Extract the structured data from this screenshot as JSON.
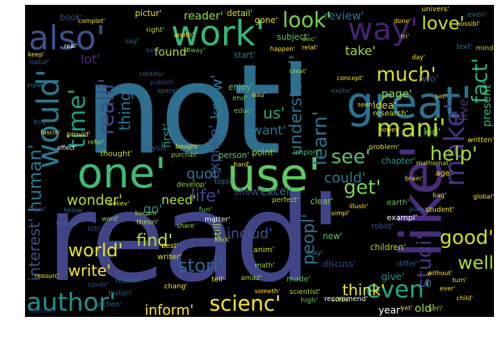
{
  "words": [
    {
      "text": "not'",
      "color": "#2e6e8e",
      "vertical": false
    },
    {
      "text": "read'",
      "color": "#414487",
      "vertical": false
    },
    {
      "text": "like'",
      "color": "#472d7b",
      "vertical": true
    },
    {
      "text": "use'",
      "color": "#5ec962",
      "vertical": false
    },
    {
      "text": "one'",
      "color": "#3dbc74",
      "vertical": false
    },
    {
      "text": "great'",
      "color": "#2c728e",
      "vertical": false
    },
    {
      "text": "work'",
      "color": "#35b779",
      "vertical": false
    },
    {
      "text": "also'",
      "color": "#3b528b",
      "vertical": false
    },
    {
      "text": "would'",
      "color": "#2a788e",
      "vertical": true
    },
    {
      "text": "make'",
      "color": "#46327e",
      "vertical": true
    },
    {
      "text": "way'",
      "color": "#482173",
      "vertical": false
    },
    {
      "text": "time'",
      "color": "#1f9e89",
      "vertical": true
    },
    {
      "text": "author'",
      "color": "#21918c",
      "vertical": false
    },
    {
      "text": "scienc'",
      "color": "#fde725",
      "vertical": false
    },
    {
      "text": "mani'",
      "color": "#b5de2b",
      "vertical": false
    },
    {
      "text": "even'",
      "color": "#22a884",
      "vertical": false
    },
    {
      "text": "fact'",
      "color": "#2db27d",
      "vertical": true
    },
    {
      "text": "help'",
      "color": "#a0da39",
      "vertical": false
    },
    {
      "text": "love'",
      "color": "#c8e020",
      "vertical": false
    },
    {
      "text": "look'",
      "color": "#7ad151",
      "vertical": false
    },
    {
      "text": "realli'",
      "color": "#3e4989",
      "vertical": true
    },
    {
      "text": "thing'",
      "color": "#2a768e",
      "vertical": true
    },
    {
      "text": "see'",
      "color": "#54c568",
      "vertical": false
    },
    {
      "text": "understand'",
      "color": "#2c728e",
      "vertical": true
    },
    {
      "text": "learn'",
      "color": "#2e6f8e",
      "vertical": true
    },
    {
      "text": "much'",
      "color": "#d8e219",
      "vertical": false
    },
    {
      "text": "world'",
      "color": "#e5e419",
      "vertical": false
    },
    {
      "text": "write'",
      "color": "#fde725",
      "vertical": false
    },
    {
      "text": "human'",
      "color": "#2a778e",
      "vertical": true
    },
    {
      "text": "interest'",
      "color": "#3b528b",
      "vertical": true
    },
    {
      "text": "get'",
      "color": "#7ad151",
      "vertical": false
    },
    {
      "text": "life'",
      "color": "#3e4a89",
      "vertical": false
    },
    {
      "text": "good'",
      "color": "#d2e21b",
      "vertical": false
    },
    {
      "text": "well'",
      "color": "#addc30",
      "vertical": false
    },
    {
      "text": "peopl'",
      "color": "#2c728e",
      "vertical": true
    },
    {
      "text": "stori'",
      "color": "#31688e",
      "vertical": false
    },
    {
      "text": "find'",
      "color": "#bddf26",
      "vertical": false
    },
    {
      "text": "inform'",
      "color": "#fde725",
      "vertical": false
    },
    {
      "text": "think'",
      "color": "#efe51c",
      "vertical": false
    },
    {
      "text": "studi'",
      "color": "#443983",
      "vertical": true
    },
    {
      "text": "know'",
      "color": "#2a788e",
      "vertical": true
    },
    {
      "text": "explain'",
      "color": "#3b528b",
      "vertical": true
    },
    {
      "text": "quot'",
      "color": "#2a788e",
      "vertical": false
    },
    {
      "text": "could'",
      "color": "#2a788e",
      "vertical": false
    },
    {
      "text": "includ'",
      "color": "#3b528b",
      "vertical": false
    },
    {
      "text": "wonder'",
      "color": "#b5de2b",
      "vertical": false
    },
    {
      "text": "need'",
      "color": "#b5de2b",
      "vertical": false
    },
    {
      "text": "us'",
      "color": "#25ab82",
      "vertical": false
    },
    {
      "text": "want'",
      "color": "#2a788e",
      "vertical": false
    },
    {
      "text": "go'",
      "color": "#21918c",
      "vertical": false
    },
    {
      "text": "give'",
      "color": "#21918c",
      "vertical": false
    },
    {
      "text": "year'",
      "color": "#ffffff",
      "vertical": false
    },
    {
      "text": "old'",
      "color": "#a0da39",
      "vertical": false
    },
    {
      "text": "take'",
      "color": "#a0da39",
      "vertical": false
    },
    {
      "text": "page'",
      "color": "#8fd744",
      "vertical": false
    },
    {
      "text": "idea'",
      "color": "#cfe11c",
      "vertical": false
    },
    {
      "text": "found'",
      "color": "#b5de2b",
      "vertical": false
    },
    {
      "text": "reader'",
      "color": "#95d840",
      "vertical": false
    },
    {
      "text": "review'",
      "color": "#2a788e",
      "vertical": false
    },
    {
      "text": "lot'",
      "color": "#46307e",
      "vertical": false
    },
    {
      "text": "first'",
      "color": "#1f9e89",
      "vertical": true
    },
    {
      "text": "kid'",
      "color": "#7ad151",
      "vertical": false
    },
    {
      "text": "two'",
      "color": "#3b528b",
      "vertical": false
    },
    {
      "text": "live'",
      "color": "#46327e",
      "vertical": true
    },
    {
      "text": "present'",
      "color": "#35b779",
      "vertical": true
    },
    {
      "text": "excel'",
      "color": "#2a788e",
      "vertical": false
    },
    {
      "text": "show'",
      "color": "#3e4989",
      "vertical": false
    },
    {
      "text": "pictur'",
      "color": "#e5e419",
      "vertical": false
    },
    {
      "text": "book'",
      "color": "#3e4989",
      "vertical": false
    },
    {
      "text": "detail'",
      "color": "#d2e21b",
      "vertical": false
    },
    {
      "text": "gone'",
      "color": "#e5e419",
      "vertical": false
    },
    {
      "text": "subject'",
      "color": "#5ec962",
      "vertical": false
    },
    {
      "text": "start'",
      "color": "#2a788e",
      "vertical": false
    },
    {
      "text": "enjoy'",
      "color": "#5ec962",
      "vertical": false
    },
    {
      "text": "end'",
      "color": "#6ccd5a",
      "vertical": false
    },
    {
      "text": "educ'",
      "color": "#6ccd5a",
      "vertical": false
    },
    {
      "text": "person'",
      "color": "#5ec962",
      "vertical": false
    },
    {
      "text": "point'",
      "color": "#addc30",
      "vertical": false
    },
    {
      "text": "topic'",
      "color": "#2e6f8e",
      "vertical": false
    },
    {
      "text": "import'",
      "color": "#3dbc74",
      "vertical": false
    },
    {
      "text": "research'",
      "color": "#cfe11c",
      "vertical": false
    },
    {
      "text": "problem'",
      "color": "#d8e219",
      "vertical": false
    },
    {
      "text": "chapter'",
      "color": "#1f9e89",
      "vertical": false
    },
    {
      "text": "age'",
      "color": "#fde725",
      "vertical": false
    },
    {
      "text": "thought'",
      "color": "#b5de2b",
      "vertical": false
    },
    {
      "text": "physic'",
      "color": "#3b528b",
      "vertical": false
    },
    {
      "text": "develop'",
      "color": "#a0da39",
      "vertical": false
    },
    {
      "text": "fun'",
      "color": "#5ec962",
      "vertical": false
    },
    {
      "text": "matter'",
      "color": "#ffffff",
      "vertical": false
    },
    {
      "text": "perfect'",
      "color": "#addc30",
      "vertical": false
    },
    {
      "text": "clear'",
      "color": "#7ad151",
      "vertical": false
    },
    {
      "text": "exampl'",
      "color": "#ffffff",
      "vertical": false
    },
    {
      "text": "robot'",
      "color": "#3b528b",
      "vertical": false
    },
    {
      "text": "children'",
      "color": "#addc30",
      "vertical": false
    },
    {
      "text": "new'",
      "color": "#5ec962",
      "vertical": false
    },
    {
      "text": "discuss'",
      "color": "#3e4989",
      "vertical": false
    },
    {
      "text": "differ'",
      "color": "#3b528b",
      "vertical": false
    },
    {
      "text": "earth'",
      "color": "#5ec962",
      "vertical": false
    },
    {
      "text": "theori'",
      "color": "#b5de2b",
      "vertical": false
    },
    {
      "text": "littl'",
      "color": "#3b528b",
      "vertical": false
    },
    {
      "text": "writer'",
      "color": "#cfe11c",
      "vertical": false
    },
    {
      "text": "best'",
      "color": "#fde725",
      "vertical": false
    },
    {
      "text": "anim'",
      "color": "#b5de2b",
      "vertical": false
    },
    {
      "text": "math'",
      "color": "#a0da39",
      "vertical": false
    },
    {
      "text": "tell'",
      "color": "#fde725",
      "vertical": false
    },
    {
      "text": "cover'",
      "color": "#3b528b",
      "vertical": false
    },
    {
      "text": "reason'",
      "color": "#2a788e",
      "vertical": false
    },
    {
      "text": "chang'",
      "color": "#fde725",
      "vertical": false
    },
    {
      "text": "amaz'",
      "color": "#a0da39",
      "vertical": false
    },
    {
      "text": "made'",
      "color": "#5ec962",
      "vertical": false
    },
    {
      "text": "scientist'",
      "color": "#b5de2b",
      "vertical": false
    },
    {
      "text": "histori'",
      "color": "#31688e",
      "vertical": false
    },
    {
      "text": "section'",
      "color": "#2e6f8e",
      "vertical": false
    },
    {
      "text": "describ'",
      "color": "#472d7b",
      "vertical": false
    },
    {
      "text": "high'",
      "color": "#5ec962",
      "vertical": false
    },
    {
      "text": "recommend'",
      "color": "#ffffff",
      "vertical": false
    },
    {
      "text": "may'",
      "color": "#2a788e",
      "vertical": false
    },
    {
      "text": "seri'",
      "color": "#a0da39",
      "vertical": false
    },
    {
      "text": "someth'",
      "color": "#fde725",
      "vertical": false
    },
    {
      "text": "written'",
      "color": "#fde725",
      "vertical": false
    },
    {
      "text": "student'",
      "color": "#fde725",
      "vertical": false
    },
    {
      "text": "planet'",
      "color": "#2e6f8e",
      "vertical": false
    },
    {
      "text": "everi'",
      "color": "#2e6f8e",
      "vertical": false
    },
    {
      "text": "univers'",
      "color": "#fde725",
      "vertical": false
    },
    {
      "text": "text'",
      "color": "#2a788e",
      "vertical": false
    },
    {
      "text": "mind'",
      "color": "#b5de2b",
      "vertical": false
    },
    {
      "text": "natur'",
      "color": "#3b528b",
      "vertical": false
    },
    {
      "text": "especi'",
      "color": "#2e6f8e",
      "vertical": false
    },
    {
      "text": "provid'",
      "color": "#fde725",
      "vertical": false
    },
    {
      "text": "buy'",
      "color": "#3b528b",
      "vertical": false
    },
    {
      "text": "fascin'",
      "color": "#fde725",
      "vertical": false
    },
    {
      "text": "effect'",
      "color": "#ffffff",
      "vertical": false
    },
    {
      "text": "refer'",
      "color": "#a0da39",
      "vertical": false
    },
    {
      "text": "continu'",
      "color": "#31688e",
      "vertical": false
    },
    {
      "text": "publish'",
      "color": "#3e4989",
      "vertical": false
    },
    {
      "text": "space'",
      "color": "#2e6f8e",
      "vertical": false
    },
    {
      "text": "say'",
      "color": "#2e6f8e",
      "vertical": false
    },
    {
      "text": "right'",
      "color": "#b5de2b",
      "vertical": false
    },
    {
      "text": "better'",
      "color": "#3b528b",
      "vertical": false
    },
    {
      "text": "real'",
      "color": "#ffffff",
      "vertical": false
    },
    {
      "text": "keep'",
      "color": "#fde725",
      "vertical": false
    },
    {
      "text": "complet'",
      "color": "#fde725",
      "vertical": false
    },
    {
      "text": "alway'",
      "color": "#5ec962",
      "vertical": false
    },
    {
      "text": "creat'",
      "color": "#a0da39",
      "vertical": false
    },
    {
      "text": "concept'",
      "color": "#fde725",
      "vertical": false
    },
    {
      "text": "explor'",
      "color": "#2e6f8e",
      "vertical": false
    },
    {
      "text": "simpl'",
      "color": "#fde725",
      "vertical": false
    },
    {
      "text": "without'",
      "color": "#fde725",
      "vertical": false
    },
    {
      "text": "ever'",
      "color": "#fde725",
      "vertical": false
    },
    {
      "text": "global'",
      "color": "#fde725",
      "vertical": false
    },
    {
      "text": "hope'",
      "color": "#3b528b",
      "vertical": false
    },
    {
      "text": "follow'",
      "color": "#2e6f8e",
      "vertical": false
    },
    {
      "text": "exercis'",
      "color": "#31688e",
      "vertical": false
    },
    {
      "text": "resourc'",
      "color": "#fde725",
      "vertical": false
    },
    {
      "text": "howev'",
      "color": "#fde725",
      "vertical": false
    },
    {
      "text": "bought'",
      "color": "#fde725",
      "vertical": false
    },
    {
      "text": "purchas'",
      "color": "#a0da39",
      "vertical": false
    },
    {
      "text": "believ'",
      "color": "#fde725",
      "vertical": false
    },
    {
      "text": "becom'",
      "color": "#a0da39",
      "vertical": false
    },
    {
      "text": "illustr'",
      "color": "#fde725",
      "vertical": false
    },
    {
      "text": "mathemat'",
      "color": "#b5de2b",
      "vertical": false
    },
    {
      "text": "brain'",
      "color": "#fde725",
      "vertical": false
    },
    {
      "text": "actual'",
      "color": "#a0da39",
      "vertical": false
    },
    {
      "text": "child'",
      "color": "#fde725",
      "vertical": false
    },
    {
      "text": "turn'",
      "color": "#fde725",
      "vertical": false
    },
    {
      "text": "yet'",
      "color": "#fde725",
      "vertical": false
    },
    {
      "text": "done'",
      "color": "#fde725",
      "vertical": false
    },
    {
      "text": "tri'",
      "color": "#fde725",
      "vertical": false
    },
    {
      "text": "day'",
      "color": "#fde725",
      "vertical": false
    },
    {
      "text": "sinc'",
      "color": "#a0da39",
      "vertical": false
    },
    {
      "text": "relat'",
      "color": "#fde725",
      "vertical": false
    },
    {
      "text": "issu'",
      "color": "#fde725",
      "vertical": false
    },
    {
      "text": "hard'",
      "color": "#fde725",
      "vertical": false
    },
    {
      "text": "share'",
      "color": "#a0da39",
      "vertical": false
    },
    {
      "text": "word'",
      "color": "#a0da39",
      "vertical": false
    },
    {
      "text": "back'",
      "color": "#a0da39",
      "vertical": false
    },
    {
      "text": "set'",
      "color": "#fde725",
      "vertical": false
    },
    {
      "text": "bag'",
      "color": "#fde725",
      "vertical": false
    },
    {
      "text": "seen'",
      "color": "#fde725",
      "vertical": false
    },
    {
      "text": "possibl'",
      "color": "#fde725",
      "vertical": false
    },
    {
      "text": "anoth'",
      "color": "#fde725",
      "vertical": false
    },
    {
      "text": "happen'",
      "color": "#fde725",
      "vertical": false
    },
    {
      "text": "still'",
      "color": "#a0da39",
      "vertical": true
    }
  ]
}
